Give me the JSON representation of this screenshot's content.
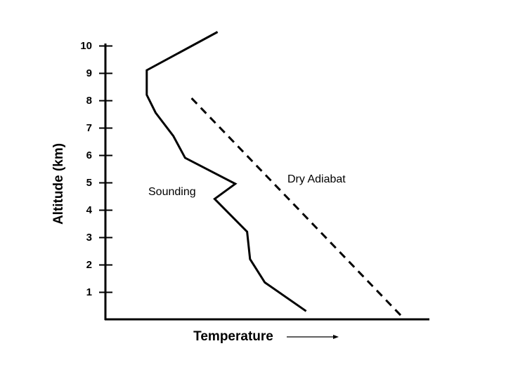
{
  "chart_data": {
    "type": "line",
    "xlabel": "Temperature",
    "ylabel": "Altitude (km)",
    "ylim": [
      0.0,
      10.5
    ],
    "y_ticks": [
      "1",
      "2",
      "3",
      "4",
      "5",
      "6",
      "7",
      "8",
      "9",
      "10"
    ],
    "x_axis_arrow": true,
    "grid": false,
    "series": [
      {
        "name": "Sounding",
        "style": "solid",
        "x": [
          6.8,
          5.4,
          4.9,
          4.8,
          3.7,
          4.4,
          2.7,
          2.3,
          1.7,
          1.4,
          1.4,
          3.8
        ],
        "y": [
          0.3,
          1.35,
          2.2,
          3.2,
          4.4,
          4.95,
          5.9,
          6.7,
          7.55,
          8.2,
          9.1,
          10.5
        ]
      },
      {
        "name": "Dry Adiabat",
        "style": "dashed",
        "x": [
          10.0,
          2.9
        ],
        "y": [
          0.15,
          8.1
        ]
      }
    ]
  }
}
